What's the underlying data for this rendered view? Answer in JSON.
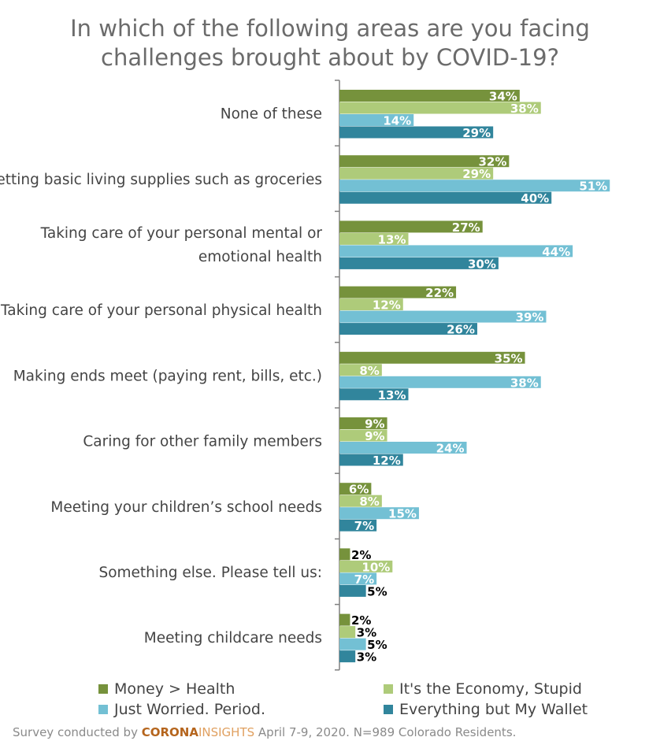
{
  "title_line1": "In which of the following areas are you facing",
  "title_line2": "challenges brought about by COVID-19?",
  "footer": {
    "prefix": "Survey conducted by ",
    "brand_part1": "CORONA",
    "brand_part2": "INSIGHTS",
    "suffix": " April 7-9, 2020. N=989 Colorado Residents."
  },
  "colors": {
    "series1": "#76923c",
    "series2": "#aecb7a",
    "series3": "#73c0d4",
    "series4": "#31859c",
    "axis": "#808080",
    "category_text": "#444444"
  },
  "chart_data": {
    "type": "bar",
    "orientation": "horizontal",
    "title": "In which of the following areas are you facing challenges brought about by COVID-19?",
    "categories": [
      [
        "None of these"
      ],
      [
        "Getting basic living supplies such as groceries"
      ],
      [
        "Taking care of your personal mental or",
        "emotional health"
      ],
      [
        "Taking care of your personal physical health"
      ],
      [
        "Making ends meet (paying rent, bills, etc.)"
      ],
      [
        "Caring for other family members"
      ],
      [
        "Meeting your children’s school needs"
      ],
      [
        "Something else. Please tell us:"
      ],
      [
        "Meeting childcare needs"
      ]
    ],
    "series": [
      {
        "name": "Money > Health",
        "values": [
          34,
          32,
          27,
          22,
          35,
          9,
          6,
          2,
          2
        ]
      },
      {
        "name": "It's the Economy, Stupid",
        "values": [
          38,
          29,
          13,
          12,
          8,
          9,
          8,
          10,
          3
        ]
      },
      {
        "name": "Just Worried. Period.",
        "values": [
          14,
          51,
          44,
          39,
          38,
          24,
          15,
          7,
          5
        ]
      },
      {
        "name": "Everything but My Wallet",
        "values": [
          29,
          40,
          30,
          26,
          13,
          12,
          7,
          5,
          3
        ]
      }
    ],
    "value_suffix": "%",
    "xlim": [
      0,
      52
    ],
    "grid": false,
    "legend_position": "bottom"
  }
}
